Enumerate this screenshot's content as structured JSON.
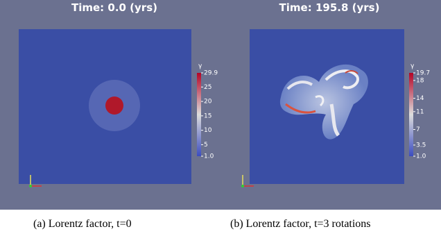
{
  "panels": [
    {
      "title": "Time: 0.0 (yrs)",
      "colorbar": {
        "label": "γ",
        "ticks": [
          "29.9",
          "25",
          "20",
          "15",
          "10",
          "5",
          "1.0"
        ]
      },
      "caption": "(a) Lorentz factor, t=0"
    },
    {
      "title": "Time: 195.8 (yrs)",
      "colorbar": {
        "label": "γ",
        "ticks": [
          "19.7",
          "18",
          "14",
          "11",
          "7",
          "3.5",
          "1.0"
        ]
      },
      "caption": "(b) Lorentz factor, t=3 rotations"
    }
  ]
}
